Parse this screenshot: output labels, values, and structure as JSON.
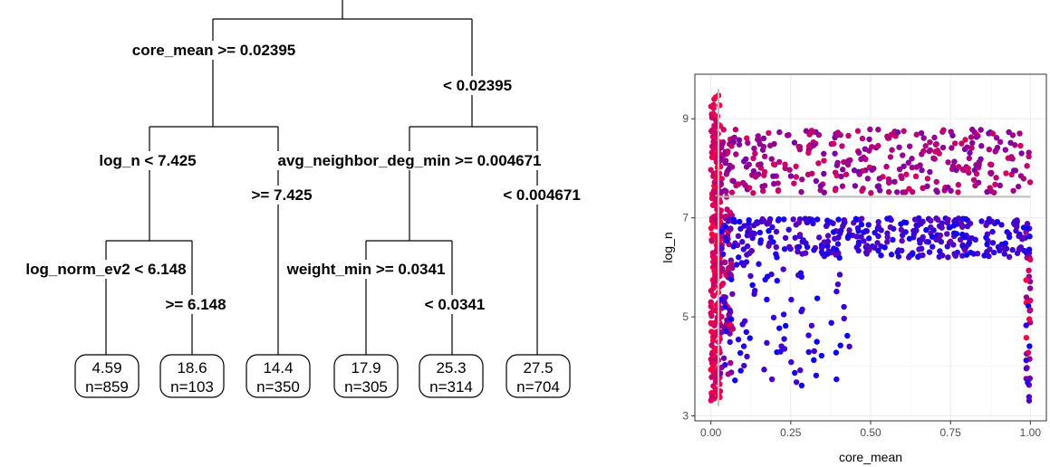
{
  "tree": {
    "nodes": [
      {
        "id": "root",
        "left_label": "core_mean >= 0.02395",
        "right_label": "< 0.02395"
      },
      {
        "id": "n2",
        "left_label": "log_n < 7.425",
        "right_label": ">= 7.425"
      },
      {
        "id": "n3",
        "left_label": "avg_neighbor_deg_min >= 0.004671",
        "right_label": "< 0.004671"
      },
      {
        "id": "n4",
        "left_label": "log_norm_ev2 < 6.148",
        "right_label": ">= 6.148"
      },
      {
        "id": "n6",
        "left_label": "weight_min >= 0.0341",
        "right_label": "< 0.0341"
      }
    ],
    "leaves": [
      {
        "value": "4.59",
        "n": "n=859"
      },
      {
        "value": "18.6",
        "n": "n=103"
      },
      {
        "value": "14.4",
        "n": "n=350"
      },
      {
        "value": "17.9",
        "n": "n=305"
      },
      {
        "value": "25.3",
        "n": "n=314"
      },
      {
        "value": "27.5",
        "n": "n=704"
      }
    ]
  },
  "chart_data": {
    "type": "scatter",
    "xlabel": "core_mean",
    "ylabel": "log_n",
    "xlim": [
      -0.05,
      1.05
    ],
    "ylim": [
      2.9,
      9.9
    ],
    "x_ticks": [
      0,
      0.25,
      0.5,
      0.75,
      1
    ],
    "x_tick_labels": [
      "0.00",
      "0.25",
      "0.50",
      "0.75",
      "1.00"
    ],
    "y_ticks": [
      3,
      5,
      7,
      9
    ],
    "y_tick_labels": [
      "3",
      "5",
      "7",
      "9"
    ],
    "grid": true,
    "color_scale": {
      "low": "#0000ff",
      "high": "#ff0040"
    },
    "split_lines": [
      {
        "orientation": "vertical",
        "x": 0.02395,
        "y_range": [
          3.2,
          9.6
        ]
      },
      {
        "orientation": "horizontal",
        "y": 7.425,
        "x_range": [
          0.02395,
          1.0
        ]
      }
    ],
    "point_clusters": [
      {
        "x": [
          0.0,
          0.03
        ],
        "y": [
          3.3,
          9.5
        ],
        "n": 260,
        "c": [
          0.75,
          1.0
        ]
      },
      {
        "x": [
          0.03,
          0.07
        ],
        "y": [
          3.8,
          8.8
        ],
        "n": 90,
        "c": [
          0.4,
          0.9
        ]
      },
      {
        "x": [
          0.03,
          1.0
        ],
        "y": [
          7.5,
          8.8
        ],
        "n": 330,
        "c": [
          0.45,
          0.85
        ]
      },
      {
        "x": [
          0.03,
          1.0
        ],
        "y": [
          6.2,
          7.0
        ],
        "n": 360,
        "c": [
          0.05,
          0.4
        ]
      },
      {
        "x": [
          0.03,
          0.45
        ],
        "y": [
          3.6,
          6.2
        ],
        "n": 80,
        "c": [
          0.0,
          0.3
        ]
      },
      {
        "x": [
          0.985,
          1.0
        ],
        "y": [
          3.3,
          6.8
        ],
        "n": 35,
        "c": [
          0.0,
          1.0
        ]
      }
    ]
  }
}
